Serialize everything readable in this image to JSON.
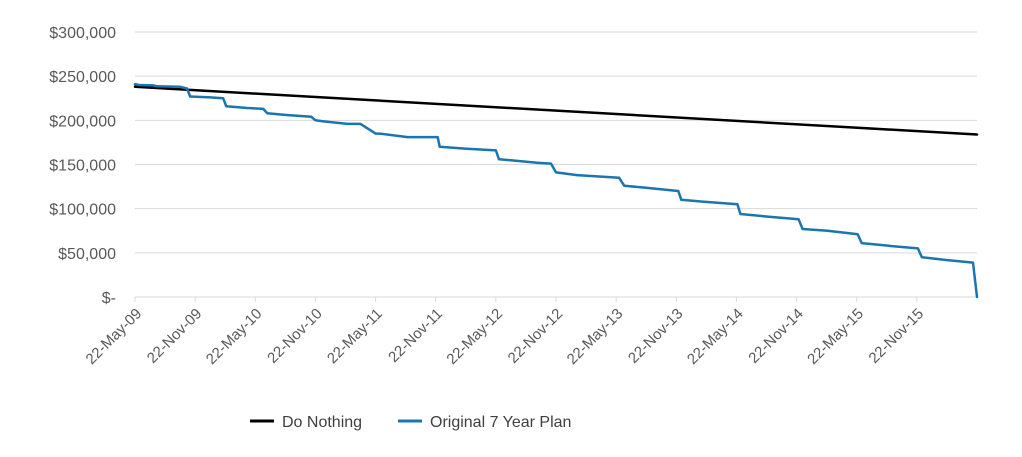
{
  "chart_data": {
    "type": "line",
    "title": "",
    "xlabel": "",
    "ylabel": "",
    "ylim": [
      0,
      300000
    ],
    "y_ticks": [
      0,
      50000,
      100000,
      150000,
      200000,
      250000,
      300000
    ],
    "y_tick_labels": [
      "$-",
      "$50,000",
      "$100,000",
      "$150,000",
      "$200,000",
      "$250,000",
      "$300,000"
    ],
    "x_tick_labels": [
      "22-May-09",
      "22-Nov-09",
      "22-May-10",
      "22-Nov-10",
      "22-May-11",
      "22-Nov-11",
      "22-May-12",
      "22-Nov-12",
      "22-May-13",
      "22-Nov-13",
      "22-May-14",
      "22-Nov-14",
      "22-May-15",
      "22-Nov-15"
    ],
    "xlim": [
      0,
      84
    ],
    "x_unit": "months since 22-May-09",
    "grid": "horizontal",
    "legend_position": "bottom",
    "series": [
      {
        "name": "Do Nothing",
        "color": "#000000",
        "x": [
          0,
          84
        ],
        "y": [
          238000,
          184000
        ]
      },
      {
        "name": "Original 7 Year Plan",
        "color": "#1B75B0",
        "x": [
          0,
          0.4,
          1.8,
          2.2,
          4.5,
          5.2,
          5.5,
          7.5,
          8.8,
          9.1,
          11.2,
          12.8,
          13.2,
          15.1,
          17.6,
          18.0,
          18.7,
          21.2,
          22.5,
          24.0,
          24.4,
          27.2,
          30.2,
          30.4,
          32.9,
          36.0,
          36.3,
          40.1,
          41.5,
          42.0,
          44.1,
          48.3,
          48.8,
          50.7,
          54.2,
          54.5,
          56.6,
          60.1,
          60.4,
          63.1,
          66.2,
          66.6,
          69.1,
          72.1,
          72.5,
          75.2,
          78.1,
          78.5,
          80.8,
          83.6,
          84.0
        ],
        "y": [
          241000,
          240000,
          239500,
          238500,
          238000,
          236000,
          227000,
          226000,
          225000,
          216000,
          214000,
          213000,
          208000,
          206000,
          204000,
          200000,
          199000,
          196000,
          196000,
          185000,
          185000,
          181000,
          181000,
          170000,
          168000,
          166000,
          156000,
          152000,
          151000,
          141000,
          138000,
          135000,
          126000,
          124000,
          120000,
          110000,
          108000,
          105000,
          94000,
          91000,
          88000,
          77000,
          75000,
          71000,
          61000,
          58000,
          55000,
          45000,
          42000,
          39000,
          0
        ]
      }
    ]
  }
}
